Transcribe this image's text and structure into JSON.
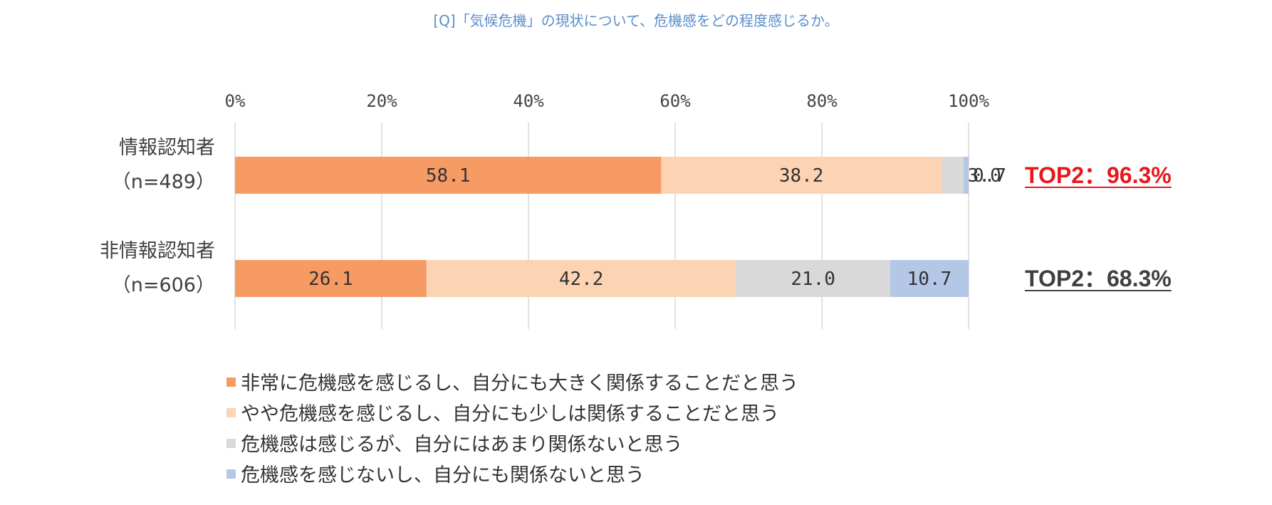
{
  "chart_data": {
    "type": "bar",
    "orientation": "horizontal",
    "stacked": true,
    "title": "[Q]「気候危機」の現状について、危機感をどの程度感じるか。",
    "xlim": [
      0,
      100
    ],
    "ticks": [
      "0%",
      "20%",
      "40%",
      "60%",
      "80%",
      "100%"
    ],
    "grid": true,
    "legend_position": "bottom",
    "categories": [
      {
        "name": "情報認知者",
        "n": "（n=489）",
        "top2": "TOP2：96.3%",
        "top2_color": "#e8171c"
      },
      {
        "name": "非情報認知者",
        "n": "（n=606）",
        "top2": "TOP2：68.3%",
        "top2_color": "#404040"
      }
    ],
    "series": [
      {
        "name": "非常に危機感を感じるし、自分にも大きく関係することだと思う",
        "color": "#f79b65",
        "values": [
          58.1,
          26.1
        ],
        "labels": [
          "58.1",
          "26.1"
        ]
      },
      {
        "name": "やや危機感を感じるし、自分にも少しは関係することだと思う",
        "color": "#fcd4b4",
        "values": [
          38.2,
          42.2
        ],
        "labels": [
          "38.2",
          "42.2"
        ]
      },
      {
        "name": "危機感は感じるが、自分にはあまり関係ないと思う",
        "color": "#d9d9d9",
        "values": [
          3.0,
          21.0
        ],
        "labels": [
          "3.0",
          "21.0"
        ]
      },
      {
        "name": "危機感を感じないし、自分にも関係ないと思う",
        "color": "#b4c7e7",
        "values": [
          0.7,
          10.7
        ],
        "labels": [
          "0.7",
          "10.7"
        ]
      }
    ]
  }
}
